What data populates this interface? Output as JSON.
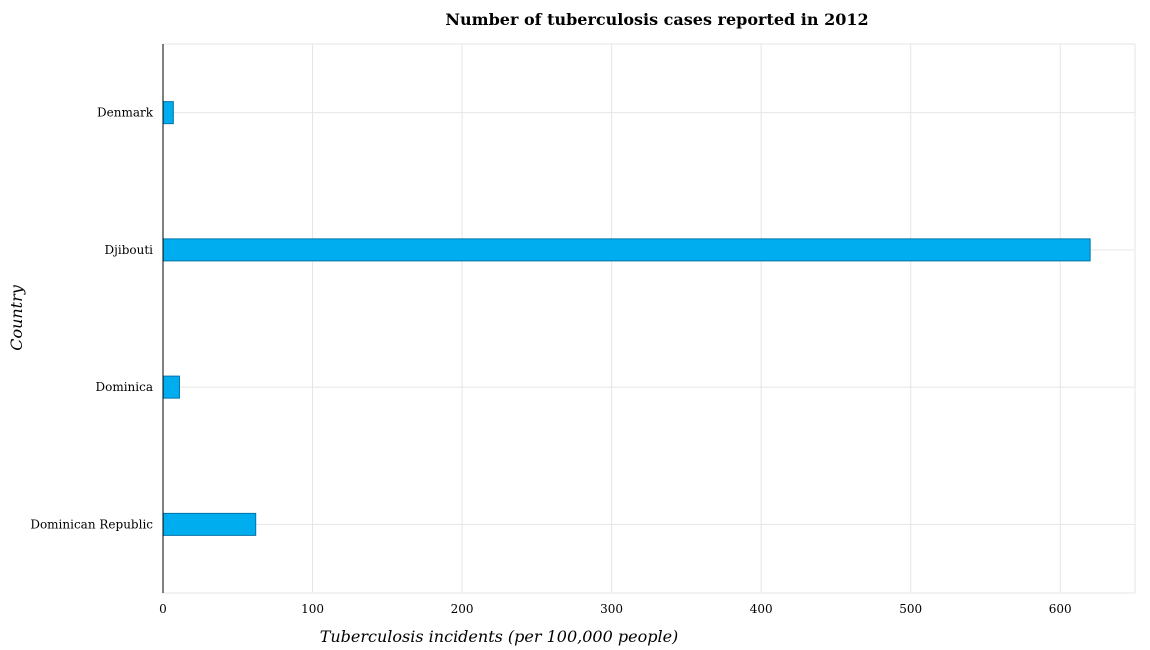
{
  "chart_data": {
    "type": "bar",
    "orientation": "horizontal",
    "title": "Number of tuberculosis cases reported in 2012",
    "xlabel": "Tuberculosis incidents (per 100,000 people)",
    "ylabel": "Country",
    "categories": [
      "Denmark",
      "Djibouti",
      "Dominica",
      "Dominican Republic"
    ],
    "values": [
      6.9,
      620,
      11,
      62
    ],
    "xlim": [
      0,
      650
    ],
    "xticks": [
      0,
      100,
      200,
      300,
      400,
      500,
      600
    ],
    "grid": true,
    "bar_color": "#00aeef",
    "bar_edge_color": "#0073a8"
  }
}
